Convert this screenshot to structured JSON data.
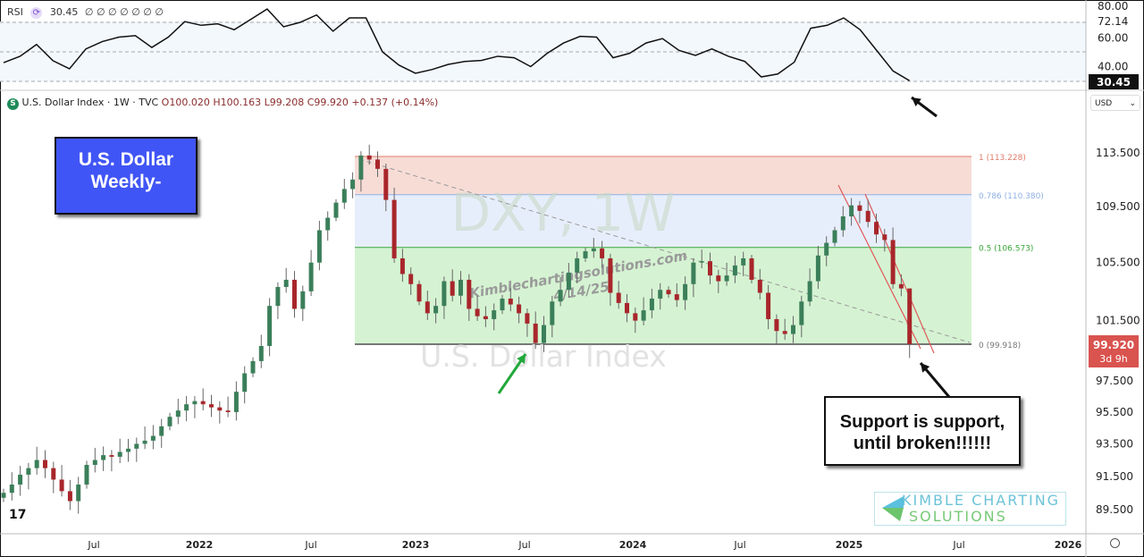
{
  "rsi_legend": {
    "label": "RSI",
    "value": "30.45",
    "extra": "∅ ∅ ∅ ∅ ∅ ∅ ∅"
  },
  "symbol": {
    "badge": "S",
    "name": "U.S. Dollar Index · 1W · TVC",
    "open": "O100.020",
    "high": "H100.163",
    "low": "L99.208",
    "close": "C99.920",
    "change": "+0.137 (+0.14%)"
  },
  "title_box": {
    "line1": "U.S. Dollar",
    "line2": "Weekly-"
  },
  "callout": {
    "line1": "Support is support,",
    "line2": "until broken!!!!!!"
  },
  "watermark": {
    "ticker": "DXY, 1W",
    "name": "U.S. Dollar Index",
    "site": "Kimblechartingsolutions.com",
    "date": "4/14/25"
  },
  "logo": {
    "line1": "KIMBLE CHARTING",
    "line2": "SOLUTIONS"
  },
  "currency_select": "USD",
  "last_price": {
    "value": "99.920",
    "countdown": "3d 9h",
    "color": "#d9534f"
  },
  "rsi_last_label": "30.45",
  "colors": {
    "up": "#3b7f5a",
    "down": "#a8262b",
    "fib_red": "#f7dcd6",
    "fib_blue": "#e7eefb",
    "fib_green": "#d5f3d2",
    "title_box": "#4055f5"
  },
  "chart_data": [
    {
      "type": "candlestick",
      "title": "U.S. Dollar Index · 1W · TVC",
      "scale": "log",
      "x_start": "2021-01-29",
      "x_end": "2025-04-14",
      "x_ticks": [
        "Jul",
        "2022",
        "Jul",
        "2023",
        "Jul",
        "2024",
        "Jul",
        "2025",
        "Jul",
        "2026"
      ],
      "y_ticks": [
        113.5,
        109.5,
        105.5,
        101.5,
        97.5,
        95.5,
        93.5,
        91.5,
        89.5
      ],
      "y_tick_labels": [
        "113.500",
        "109.500",
        "105.500",
        "101.500",
        "97.500",
        "95.500",
        "93.500",
        "91.500",
        "89.500"
      ],
      "ylim": [
        88.5,
        117
      ],
      "closes": [
        90.5,
        91.0,
        91.6,
        92.0,
        92.5,
        92.0,
        91.3,
        90.6,
        90.0,
        91.0,
        92.2,
        92.5,
        92.8,
        92.7,
        93.0,
        93.2,
        93.5,
        93.7,
        94.0,
        94.6,
        95.2,
        95.6,
        96.0,
        96.2,
        96.0,
        95.8,
        95.6,
        95.5,
        96.8,
        98.0,
        98.8,
        99.8,
        102.5,
        103.8,
        104.3,
        102.3,
        103.5,
        105.5,
        107.8,
        108.7,
        109.8,
        110.8,
        111.5,
        113.3,
        113.0,
        112.3,
        110.0,
        105.8,
        104.7,
        104.0,
        102.8,
        102.0,
        102.5,
        104.2,
        103.2,
        104.3,
        102.3,
        101.8,
        101.6,
        102.2,
        103.0,
        102.6,
        102.0,
        101.3,
        100.0,
        101.2,
        102.8,
        103.6,
        104.8,
        105.8,
        106.3,
        106.5,
        105.8,
        103.4,
        102.7,
        102.0,
        101.5,
        102.2,
        103.0,
        103.6,
        103.3,
        102.9,
        104.0,
        105.5,
        105.6,
        104.6,
        104.2,
        104.6,
        105.3,
        105.8,
        104.3,
        103.4,
        101.6,
        100.8,
        100.6,
        101.2,
        102.8,
        104.2,
        106.0,
        106.9,
        107.8,
        108.8,
        109.6,
        109.2,
        108.4,
        107.5,
        107.1,
        104.0,
        103.7,
        99.92
      ],
      "last": {
        "open": 100.02,
        "high": 100.163,
        "low": 99.208,
        "close": 99.92
      },
      "fib_retracement": [
        {
          "level": "1",
          "price": 113.228,
          "label": "1 (113.228)",
          "color": "#e07b6a"
        },
        {
          "level": "0.786",
          "price": 110.38,
          "label": "0.786 (110.380)",
          "color": "#8fb0e6"
        },
        {
          "level": "0.5",
          "price": 106.573,
          "label": "0.5 (106.573)",
          "color": "#3aa63a"
        },
        {
          "level": "0",
          "price": 99.918,
          "label": "0 (99.918)",
          "color": "#777777"
        }
      ]
    },
    {
      "type": "line",
      "title": "RSI",
      "y_ticks": [
        80,
        72.14,
        60,
        40
      ],
      "y_tick_labels": [
        "80.00",
        "72.14",
        "60.00",
        "40.00"
      ],
      "bands": [
        30,
        50,
        70
      ],
      "ylim": [
        25,
        83
      ],
      "values": [
        42.7,
        47,
        55,
        44,
        38.5,
        52,
        57,
        60,
        61,
        53,
        60,
        70.5,
        68,
        69,
        65,
        72,
        79,
        67,
        70,
        75,
        64,
        73,
        73,
        50,
        41,
        35.5,
        38,
        41.5,
        43.5,
        44.2,
        47,
        46,
        40,
        49,
        56,
        60.5,
        60,
        46,
        49,
        56,
        59,
        51,
        47.6,
        52,
        47,
        43.5,
        33,
        35,
        43,
        66,
        68,
        73,
        65,
        51,
        37,
        30.45
      ],
      "last": 30.45
    }
  ]
}
